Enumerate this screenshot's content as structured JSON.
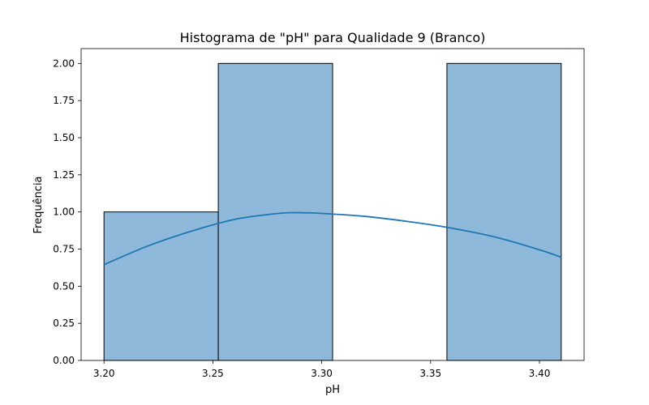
{
  "chart_data": {
    "type": "bar",
    "subtype": "histogram",
    "title": "Histograma de \"pH\" para Qualidade 9 (Branco)",
    "xlabel": "pH",
    "ylabel": "Frequência",
    "xlim": [
      3.1895,
      3.4205
    ],
    "ylim": [
      0,
      2.1
    ],
    "xticks": [
      3.2,
      3.25,
      3.3,
      3.35,
      3.4
    ],
    "xtick_labels": [
      "3.20",
      "3.25",
      "3.30",
      "3.35",
      "3.40"
    ],
    "yticks": [
      0,
      0.25,
      0.5,
      0.75,
      1.0,
      1.25,
      1.5,
      1.75,
      2.0
    ],
    "ytick_labels": [
      "0.00",
      "0.25",
      "0.50",
      "0.75",
      "1.00",
      "1.25",
      "1.50",
      "1.75",
      "2.00"
    ],
    "bins": [
      {
        "x0": 3.2,
        "x1": 3.2525,
        "count": 1
      },
      {
        "x0": 3.2525,
        "x1": 3.305,
        "count": 2
      },
      {
        "x0": 3.305,
        "x1": 3.3575,
        "count": 0
      },
      {
        "x0": 3.3575,
        "x1": 3.41,
        "count": 2
      }
    ],
    "kde": {
      "x": [
        3.2,
        3.22,
        3.24,
        3.26,
        3.28,
        3.29,
        3.3,
        3.32,
        3.34,
        3.36,
        3.38,
        3.4,
        3.41
      ],
      "y": [
        0.645,
        0.77,
        0.87,
        0.95,
        0.99,
        0.995,
        0.99,
        0.97,
        0.935,
        0.89,
        0.83,
        0.745,
        0.695
      ]
    },
    "grid": false,
    "legend": "none",
    "colors": {
      "bar_fill": "#8fb9da",
      "bar_edge": "#000000",
      "kde_line": "#1f77b4"
    }
  }
}
